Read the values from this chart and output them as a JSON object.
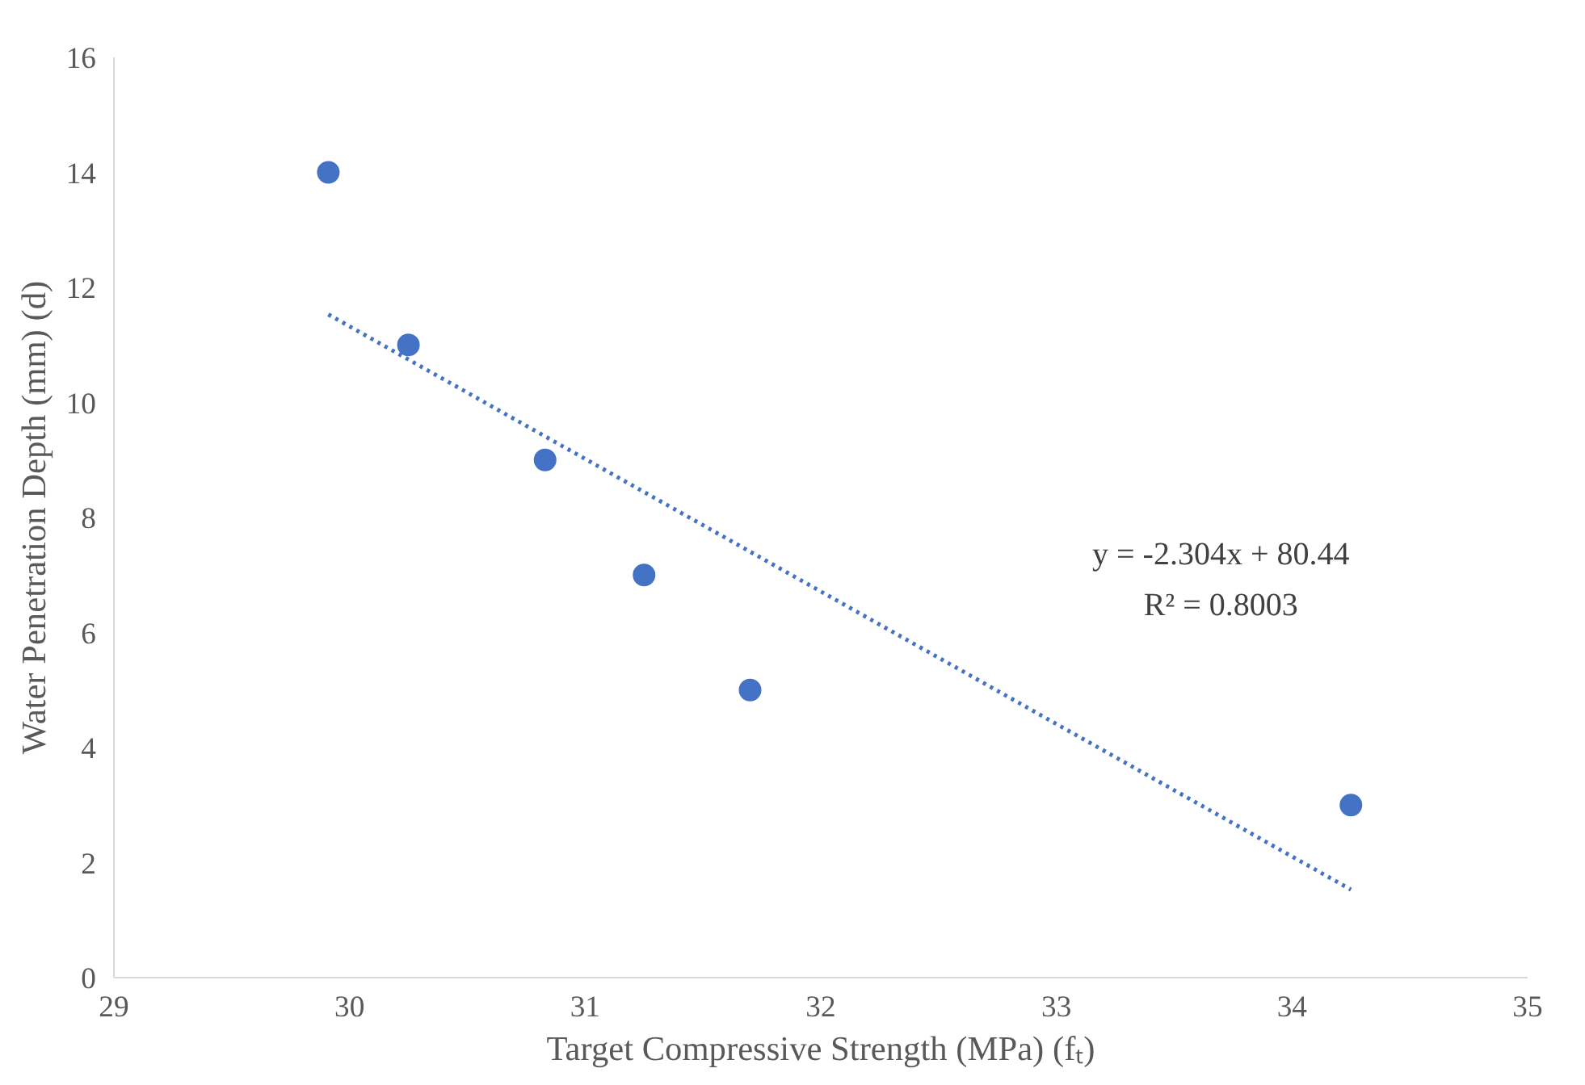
{
  "chart_data": {
    "type": "scatter",
    "xlabel": "Target Compressive Strength (MPa) (fₜ)",
    "ylabel": "Water Penetration Depth (mm) (d)",
    "x": [
      29.91,
      30.25,
      30.83,
      31.25,
      31.7,
      34.25
    ],
    "series": [
      {
        "color": "#4472c4",
        "values": [
          14,
          11,
          9,
          7,
          5,
          3
        ],
        "marker": "circle"
      },
      {
        "type": "line",
        "color": "#4472c4",
        "x": [
          29.91,
          34.25
        ],
        "values": [
          11.53,
          1.53
        ],
        "line_style": "dotted",
        "marker": "none"
      }
    ],
    "annotations": [
      "y = -2.304x + 80.44",
      "R² = 0.8003"
    ],
    "xlim": [
      29,
      35
    ],
    "xticks": [
      29,
      30,
      31,
      32,
      33,
      34,
      35
    ],
    "ylim": [
      0,
      16
    ],
    "yticks": [
      0,
      2,
      4,
      6,
      8,
      10,
      12,
      14,
      16
    ]
  }
}
